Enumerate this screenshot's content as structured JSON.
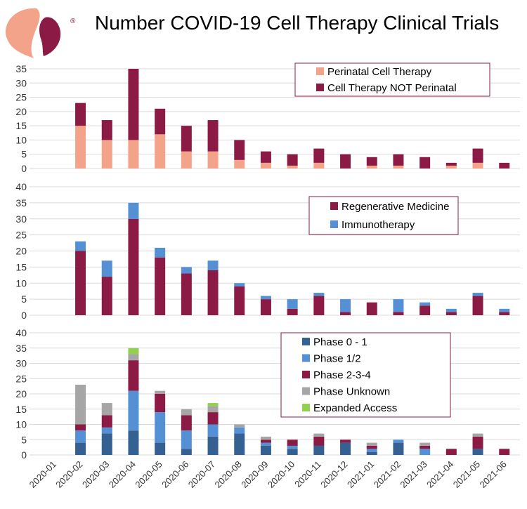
{
  "title": "Number COVID-19 Cell Therapy Clinical Trials",
  "logo": {
    "registered_mark": "®",
    "colors": [
      "#F4A38B",
      "#8B1A45"
    ]
  },
  "chart_data": [
    {
      "type": "bar",
      "stacked": true,
      "categories": [
        "2020-01",
        "2020-02",
        "2020-03",
        "2020-04",
        "2020-05",
        "2020-06",
        "2020-07",
        "2020-08",
        "2020-09",
        "2020-10",
        "2020-11",
        "2020-12",
        "2021-01",
        "2021-02",
        "2021-03",
        "2021-04",
        "2021-05",
        "2021-06"
      ],
      "ylim": [
        0,
        35
      ],
      "yticks": [
        "0",
        "5",
        "10",
        "15",
        "20",
        "25",
        "30",
        "35"
      ],
      "grid": true,
      "legend": "top-right",
      "series": [
        {
          "name": "Perinatal Cell Therapy",
          "color": "#F4A38B",
          "values": [
            0,
            15,
            10,
            10,
            12,
            6,
            6,
            3,
            2,
            1,
            2,
            0,
            1,
            1,
            0,
            1,
            2,
            0
          ]
        },
        {
          "name": "Cell Therapy NOT Perinatal",
          "color": "#8B1A45",
          "values": [
            0,
            8,
            7,
            25,
            9,
            9,
            11,
            7,
            4,
            4,
            5,
            5,
            3,
            4,
            4,
            1,
            5,
            2
          ]
        }
      ]
    },
    {
      "type": "bar",
      "stacked": true,
      "categories": [
        "2020-01",
        "2020-02",
        "2020-03",
        "2020-04",
        "2020-05",
        "2020-06",
        "2020-07",
        "2020-08",
        "2020-09",
        "2020-10",
        "2020-11",
        "2020-12",
        "2021-01",
        "2021-02",
        "2021-03",
        "2021-04",
        "2021-05",
        "2021-06"
      ],
      "ylim": [
        0,
        40
      ],
      "yticks": [
        "0",
        "5",
        "10",
        "15",
        "20",
        "25",
        "30",
        "35",
        "40"
      ],
      "grid": true,
      "legend": "top-right",
      "series": [
        {
          "name": "Regenerative Medicine",
          "color": "#8B1A45",
          "values": [
            0,
            20,
            12,
            30,
            18,
            13,
            14,
            9,
            5,
            2,
            6,
            1,
            4,
            1,
            3,
            1,
            6,
            1
          ]
        },
        {
          "name": "Immunotherapy",
          "color": "#5590D5",
          "values": [
            0,
            3,
            5,
            5,
            3,
            2,
            3,
            1,
            1,
            3,
            1,
            4,
            0,
            4,
            1,
            1,
            1,
            1
          ]
        }
      ]
    },
    {
      "type": "bar",
      "stacked": true,
      "categories": [
        "2020-01",
        "2020-02",
        "2020-03",
        "2020-04",
        "2020-05",
        "2020-06",
        "2020-07",
        "2020-08",
        "2020-09",
        "2020-10",
        "2020-11",
        "2020-12",
        "2021-01",
        "2021-02",
        "2021-03",
        "2021-04",
        "2021-05",
        "2021-06"
      ],
      "ylim": [
        0,
        40
      ],
      "yticks": [
        "0",
        "5",
        "10",
        "15",
        "20",
        "25",
        "30",
        "35",
        "40"
      ],
      "grid": true,
      "legend": "top-right",
      "series": [
        {
          "name": "Phase 0 - 1",
          "color": "#356092",
          "values": [
            0,
            4,
            7,
            8,
            4,
            2,
            6,
            7,
            3,
            2,
            3,
            4,
            1,
            4,
            0,
            0,
            2,
            0
          ]
        },
        {
          "name": "Phase 1/2",
          "color": "#5590D5",
          "values": [
            0,
            4,
            2,
            13,
            10,
            6,
            4,
            2,
            1,
            1,
            0,
            0,
            1,
            1,
            2,
            0,
            0,
            0
          ]
        },
        {
          "name": "Phase 2-3-4",
          "color": "#8B1A45",
          "values": [
            0,
            2,
            4,
            10,
            6,
            5,
            4,
            0,
            1,
            2,
            3,
            1,
            1,
            0,
            1,
            2,
            4,
            2
          ]
        },
        {
          "name": "Phase Unknown",
          "color": "#A6A6A6",
          "values": [
            0,
            13,
            4,
            2,
            1,
            2,
            2,
            1,
            1,
            0,
            1,
            0,
            1,
            0,
            1,
            0,
            1,
            0
          ]
        },
        {
          "name": "Expanded Access",
          "color": "#92D050",
          "values": [
            0,
            0,
            0,
            2,
            0,
            0,
            1,
            0,
            0,
            0,
            0,
            0,
            0,
            0,
            0,
            0,
            0,
            0
          ]
        }
      ]
    }
  ]
}
